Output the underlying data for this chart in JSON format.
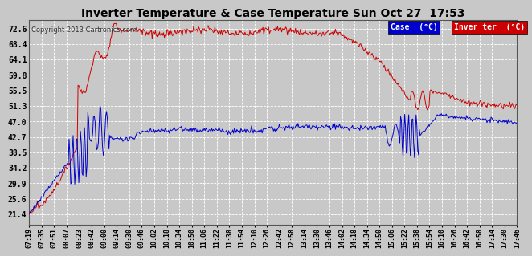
{
  "title": "Inverter Temperature & Case Temperature Sun Oct 27  17:53",
  "copyright": "Copyright 2013 Cartronics.com",
  "legend_labels": [
    "Case  (°C)",
    "Inver ter  (°C)"
  ],
  "legend_colors": [
    "#0000cc",
    "#cc0000"
  ],
  "yticks": [
    21.4,
    25.6,
    29.9,
    34.2,
    38.5,
    42.7,
    47.0,
    51.3,
    55.5,
    59.8,
    64.1,
    68.4,
    72.6
  ],
  "ylim": [
    18.5,
    75.0
  ],
  "bg_color": "#c8c8c8",
  "plot_bg_color": "#c8c8c8",
  "grid_color": "#ffffff",
  "case_color": "#0000cc",
  "inverter_color": "#cc0000",
  "xtick_labels": [
    "07:19",
    "07:35",
    "07:51",
    "08:07",
    "08:23",
    "08:42",
    "09:00",
    "09:14",
    "09:30",
    "09:46",
    "10:02",
    "10:18",
    "10:34",
    "10:50",
    "11:06",
    "11:22",
    "11:38",
    "11:54",
    "12:10",
    "12:26",
    "12:42",
    "12:58",
    "13:14",
    "13:30",
    "13:46",
    "14:02",
    "14:18",
    "14:34",
    "14:50",
    "15:06",
    "15:22",
    "15:38",
    "15:54",
    "16:10",
    "16:26",
    "16:42",
    "16:58",
    "17:14",
    "17:30",
    "17:46"
  ]
}
